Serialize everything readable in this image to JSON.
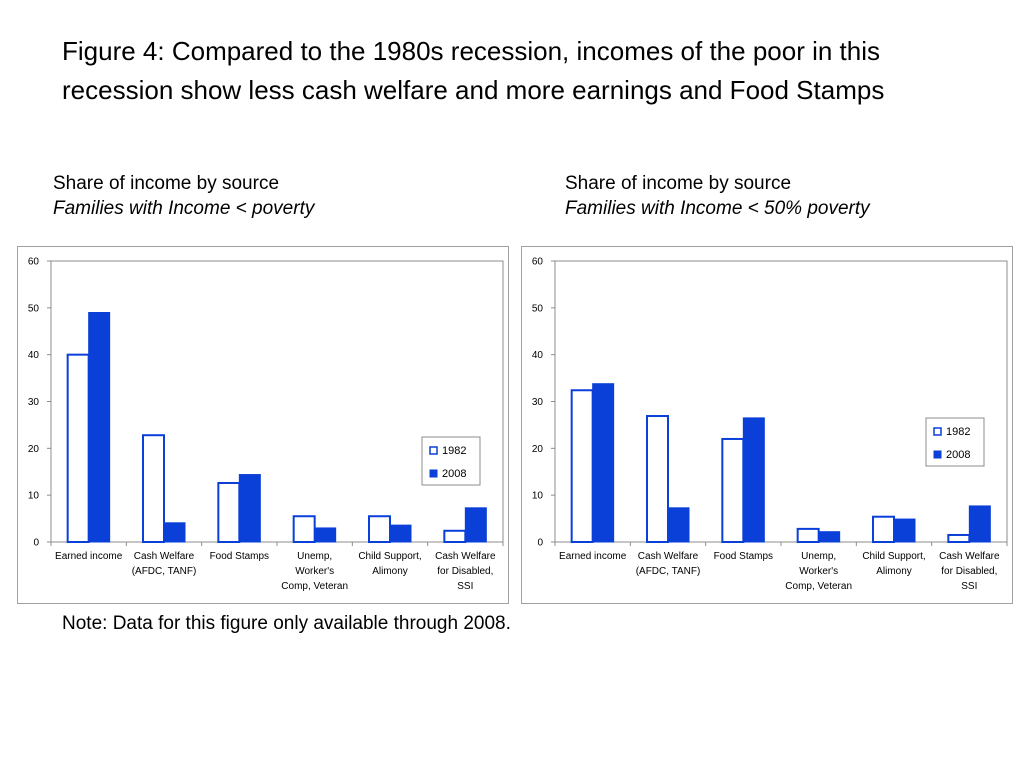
{
  "title": "Figure 4: Compared to the 1980s recession, incomes of the poor in this recession show less cash welfare and more earnings and Food Stamps",
  "note": "Note: Data for this figure only available through 2008.",
  "colors": {
    "series_1982_fill": "#ffffff",
    "series_2008_fill": "#0a3fd8",
    "bar_stroke": "#0a3fd8"
  },
  "chart_data": [
    {
      "type": "bar",
      "title": "Share of income by source",
      "subtitle": "Families  with Income < poverty",
      "xlabel": "",
      "ylabel": "",
      "ylim": [
        0,
        60
      ],
      "yticks": [
        "0",
        "10",
        "20",
        "30",
        "40",
        "50",
        "60"
      ],
      "categories": [
        [
          "Earned income"
        ],
        [
          "Cash Welfare",
          "(AFDC, TANF)"
        ],
        [
          "Food Stamps"
        ],
        [
          "Unemp,",
          "Worker's",
          "Comp, Veteran"
        ],
        [
          "Child Support,",
          "Alimony"
        ],
        [
          "Cash Welfare",
          "for Disabled,",
          "SSI"
        ]
      ],
      "series": [
        {
          "name": "1982",
          "values": [
            40,
            22.8,
            12.6,
            5.5,
            5.5,
            2.4
          ]
        },
        {
          "name": "2008",
          "values": [
            49,
            4.1,
            14.4,
            3.0,
            3.6,
            7.3
          ]
        }
      ],
      "legend": "right"
    },
    {
      "type": "bar",
      "title": "Share of income by source",
      "subtitle": "Families with Income < 50% poverty",
      "xlabel": "",
      "ylabel": "",
      "ylim": [
        0,
        60
      ],
      "yticks": [
        "0",
        "10",
        "20",
        "30",
        "40",
        "50",
        "60"
      ],
      "categories": [
        [
          "Earned income"
        ],
        [
          "Cash Welfare",
          "(AFDC, TANF)"
        ],
        [
          "Food Stamps"
        ],
        [
          "Unemp,",
          "Worker's",
          "Comp, Veteran"
        ],
        [
          "Child Support,",
          "Alimony"
        ],
        [
          "Cash Welfare",
          "for Disabled,",
          "SSI"
        ]
      ],
      "series": [
        {
          "name": "1982",
          "values": [
            32.4,
            26.9,
            22.0,
            2.8,
            5.4,
            1.5
          ]
        },
        {
          "name": "2008",
          "values": [
            33.8,
            7.3,
            26.5,
            2.2,
            4.9,
            7.7
          ]
        }
      ],
      "legend": "right"
    }
  ]
}
